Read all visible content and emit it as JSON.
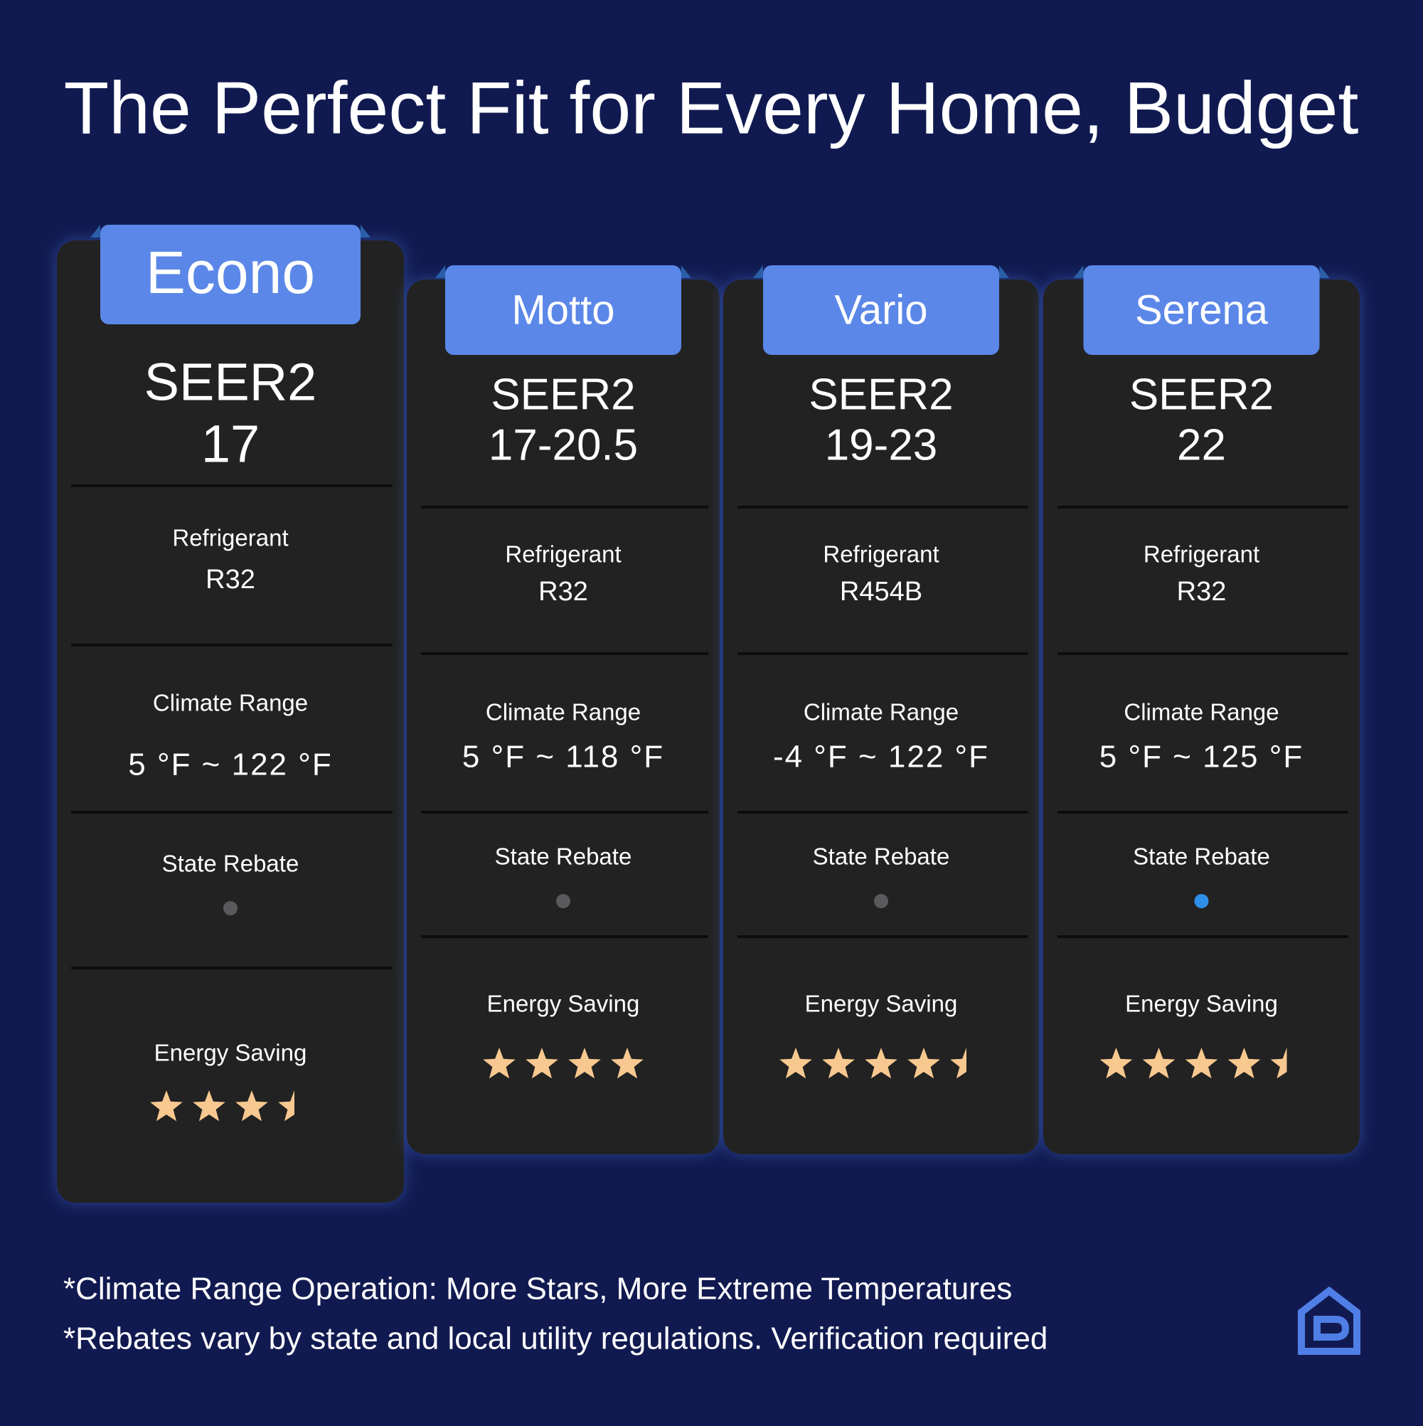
{
  "header": {
    "title": "The Perfect Fit for Every Home, Budget"
  },
  "cards": [
    {
      "name": "Econo",
      "seer_label": "SEER2",
      "seer_value": "17",
      "refrigerant_label": "Refrigerant",
      "refrigerant": "R32",
      "climate_label": "Climate Range",
      "climate_range": "5 °F ~ 122 °F",
      "rebate_label": "State Rebate",
      "rebate": false,
      "energy_label": "Energy Saving",
      "stars": 3.5
    },
    {
      "name": "Motto",
      "seer_label": "SEER2",
      "seer_value": "17-20.5",
      "refrigerant_label": "Refrigerant",
      "refrigerant": "R32",
      "climate_label": "Climate Range",
      "climate_range": "5 °F ~ 118 °F",
      "rebate_label": "State Rebate",
      "rebate": false,
      "energy_label": "Energy Saving",
      "stars": 4
    },
    {
      "name": "Vario",
      "seer_label": "SEER2",
      "seer_value": "19-23",
      "refrigerant_label": "Refrigerant",
      "refrigerant": "R454B",
      "climate_label": "Climate Range",
      "climate_range": "-4 °F ~ 122 °F",
      "rebate_label": "State Rebate",
      "rebate": false,
      "energy_label": "Energy Saving",
      "stars": 4.5
    },
    {
      "name": "Serena",
      "seer_label": "SEER2",
      "seer_value": "22",
      "refrigerant_label": "Refrigerant",
      "refrigerant": "R32",
      "climate_label": "Climate Range",
      "climate_range": "5 °F ~ 125 °F",
      "rebate_label": "State Rebate",
      "rebate": true,
      "energy_label": "Energy Saving",
      "stars": 4.5
    }
  ],
  "footnotes": [
    "*Climate Range Operation: More Stars, More Extreme Temperatures",
    "*Rebates vary by state and local utility regulations. Verification required"
  ]
}
